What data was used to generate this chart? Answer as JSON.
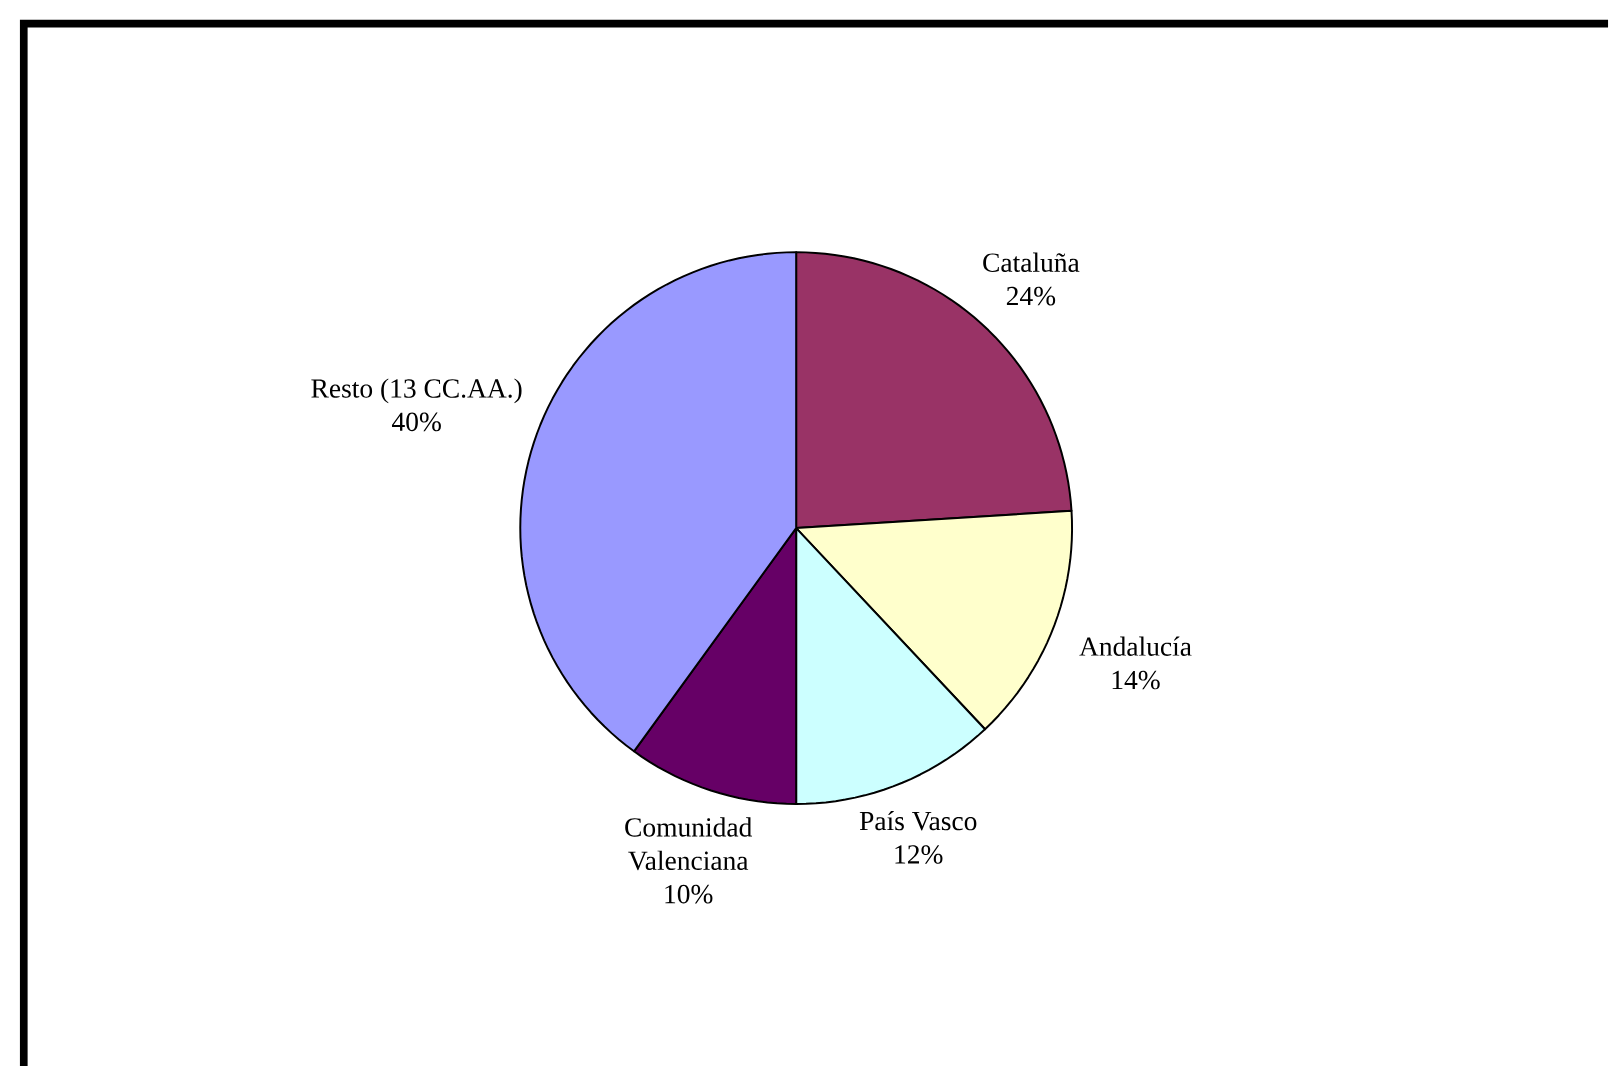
{
  "chart_data": {
    "type": "pie",
    "categories": [
      "Cataluña",
      "Andalucía",
      "País Vasco",
      "Comunidad Valenciana",
      "Resto (13 CC.AA.)"
    ],
    "values": [
      24,
      14,
      12,
      10,
      40
    ],
    "colors": [
      "#993366",
      "#ffffcc",
      "#ccffff",
      "#660066",
      "#9999ff"
    ],
    "value_labels": [
      "24%",
      "14%",
      "12%",
      "10%",
      "40%"
    ]
  }
}
